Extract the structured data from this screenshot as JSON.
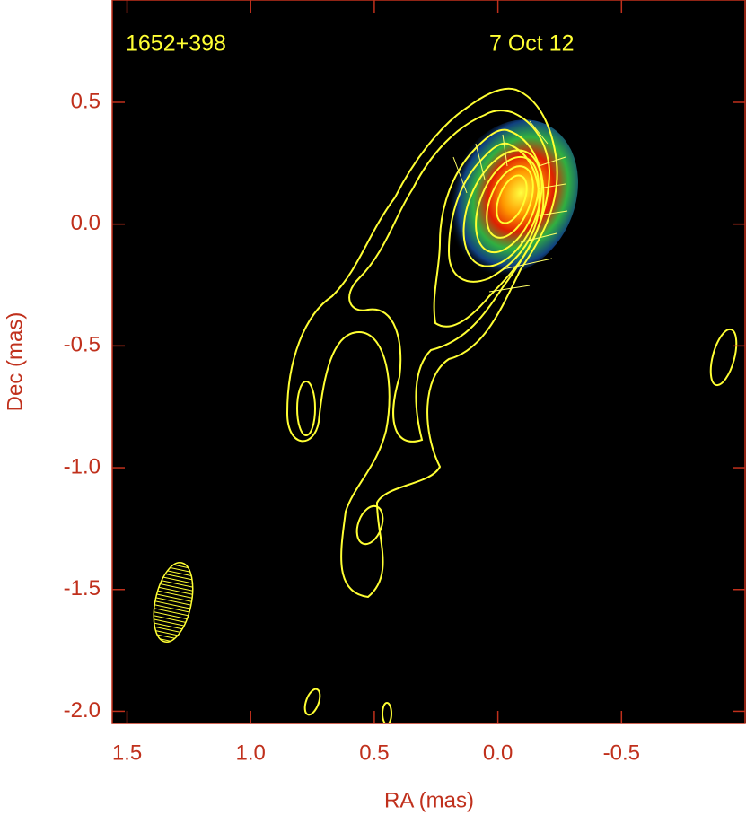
{
  "chart_data": {
    "type": "contour",
    "source": "1652+398",
    "epoch": "7 Oct 12",
    "xlabel": "RA (mas)",
    "ylabel": "Dec (mas)",
    "xlim": [
      1.56,
      -1.0
    ],
    "ylim": [
      -2.05,
      0.92
    ],
    "xticks": [
      1.5,
      {
        "value": 1,
        "label": "1.0"
      },
      0.5,
      {
        "value": 0,
        "label": "0.0"
      },
      -0.5
    ],
    "yticks": [
      0.5,
      {
        "value": 0,
        "label": "0.0"
      },
      -0.5,
      {
        "value": -1,
        "label": "-1.0"
      },
      -1.5,
      {
        "value": -2,
        "label": "-2.0"
      }
    ],
    "frame_color": "#c0301c",
    "contour_color": "#ffff33",
    "background": "#000000"
  }
}
